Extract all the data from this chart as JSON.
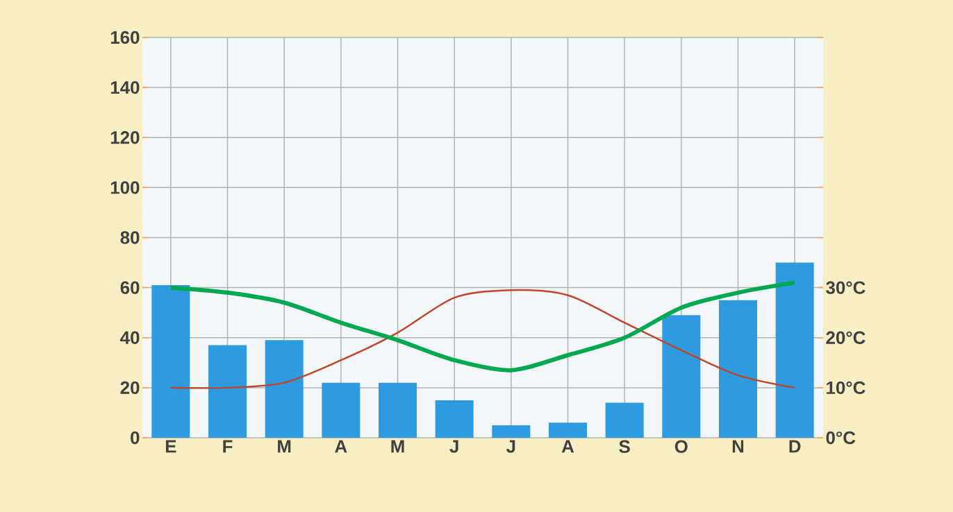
{
  "chart_data": {
    "type": "bar",
    "categories": [
      "E",
      "F",
      "M",
      "A",
      "M",
      "J",
      "J",
      "A",
      "S",
      "O",
      "N",
      "D"
    ],
    "series": [
      {
        "color": "#2e9be0",
        "values": [
          61,
          37,
          39,
          22,
          22,
          15,
          5,
          6,
          14,
          49,
          55,
          70
        ]
      },
      {
        "type": "line",
        "axis": "y2",
        "color": "#c0452b",
        "values": [
          10,
          10,
          11,
          15.5,
          21,
          28,
          29.5,
          28.5,
          23,
          17.5,
          12.5,
          10
        ]
      },
      {
        "type": "line",
        "axis": "y2",
        "color": "#00a84f",
        "values": [
          30,
          29,
          27,
          23,
          19.5,
          15.5,
          13.5,
          16.5,
          20,
          26,
          29,
          31
        ]
      }
    ],
    "ylim": [
      0,
      160
    ],
    "yticks": [
      0,
      20,
      40,
      60,
      80,
      100,
      120,
      140,
      160
    ],
    "y2lim": [
      0,
      80
    ],
    "y2ticks": [
      {
        "value": 0,
        "label": "0°C"
      },
      {
        "value": 10,
        "label": "10°C"
      },
      {
        "value": 20,
        "label": "20°C"
      },
      {
        "value": 30,
        "label": "30°C"
      }
    ],
    "grid": true,
    "marker": "none",
    "line_style": "solid"
  }
}
